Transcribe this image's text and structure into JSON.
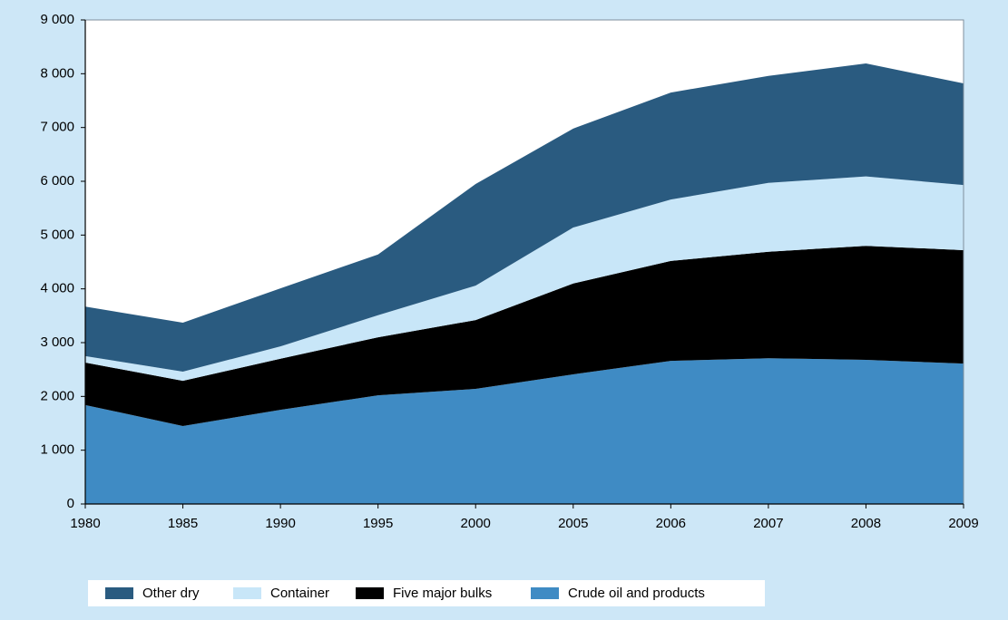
{
  "chart_data": {
    "type": "stacked-area",
    "categories": [
      "1980",
      "1985",
      "1990",
      "1995",
      "2000",
      "2005",
      "2006",
      "2007",
      "2008",
      "2009"
    ],
    "series": [
      {
        "name": "Other dry",
        "color": "#2a5b80",
        "values": [
          920,
          910,
          1080,
          1130,
          1890,
          1840,
          1990,
          1990,
          2100,
          1890
        ]
      },
      {
        "name": "Container",
        "color": "#c8e6f8",
        "values": [
          120,
          170,
          230,
          410,
          640,
          1040,
          1140,
          1280,
          1290,
          1210
        ]
      },
      {
        "name": "Five major bulks",
        "color": "#000000",
        "values": [
          790,
          840,
          950,
          1080,
          1280,
          1690,
          1860,
          1980,
          2120,
          2110
        ]
      },
      {
        "name": "Crude oil and products",
        "color": "#3f8bc4",
        "values": [
          1840,
          1450,
          1750,
          2020,
          2140,
          2410,
          2660,
          2710,
          2680,
          2610
        ]
      }
    ],
    "ylim": [
      0,
      9000
    ],
    "yticks": [
      0,
      {
        "value": 1000,
        "label": "1 000"
      },
      {
        "value": 2000,
        "label": "2 000"
      },
      {
        "value": 3000,
        "label": "3 000"
      },
      {
        "value": 4000,
        "label": "4 000"
      },
      {
        "value": 5000,
        "label": "5 000"
      },
      {
        "value": 6000,
        "label": "6 000"
      },
      {
        "value": 7000,
        "label": "7 000"
      },
      {
        "value": 8000,
        "label": "8 000"
      },
      {
        "value": 9000,
        "label": "9 000"
      }
    ],
    "legend": "bottom"
  }
}
